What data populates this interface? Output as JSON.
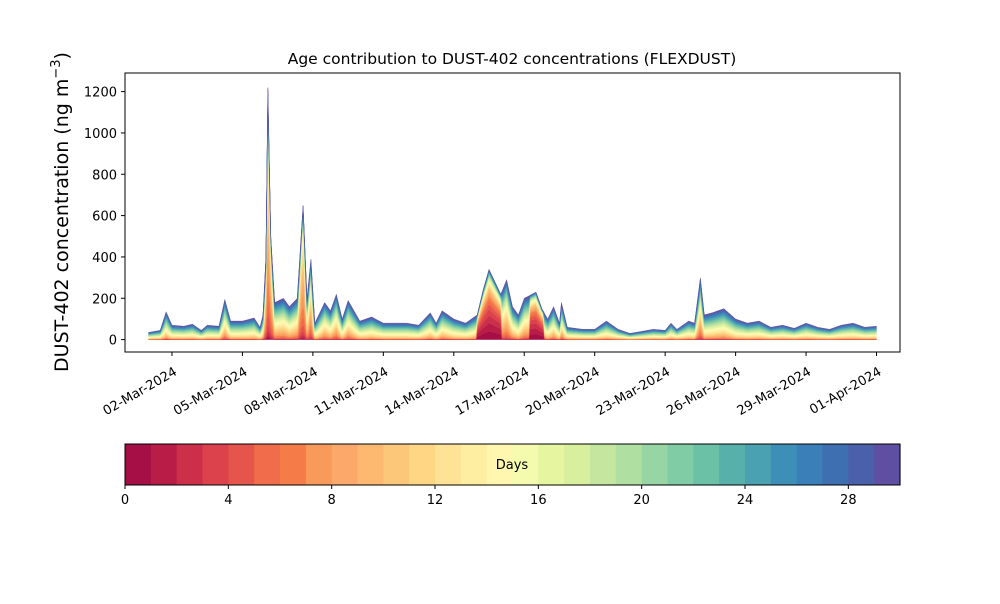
{
  "chart_data": {
    "type": "area",
    "stacked": true,
    "title": "Age contribution to DUST-402 concentrations (FLEXDUST)",
    "ylabel": "DUST-402 concentration (ng m",
    "ylabel_unit_superscript": "−3",
    "ylabel_close": ")",
    "xlabel": "",
    "ylim": [
      -60,
      1290
    ],
    "yticks": [
      0,
      200,
      400,
      600,
      800,
      1000,
      1200
    ],
    "x_start": "2024-02-29",
    "x_end": "2024-04-02",
    "x_data_range": [
      "2024-03-01",
      "2024-04-01"
    ],
    "xticks": [
      {
        "date": "2024-03-02",
        "label": "02-Mar-2024"
      },
      {
        "date": "2024-03-05",
        "label": "05-Mar-2024"
      },
      {
        "date": "2024-03-08",
        "label": "08-Mar-2024"
      },
      {
        "date": "2024-03-11",
        "label": "11-Mar-2024"
      },
      {
        "date": "2024-03-14",
        "label": "14-Mar-2024"
      },
      {
        "date": "2024-03-17",
        "label": "17-Mar-2024"
      },
      {
        "date": "2024-03-20",
        "label": "20-Mar-2024"
      },
      {
        "date": "2024-03-23",
        "label": "23-Mar-2024"
      },
      {
        "date": "2024-03-26",
        "label": "26-Mar-2024"
      },
      {
        "date": "2024-03-29",
        "label": "29-Mar-2024"
      },
      {
        "date": "2024-04-01",
        "label": "01-Apr-2024"
      }
    ],
    "total_series": [
      [
        "2024-03-01 00:00",
        35
      ],
      [
        "2024-03-01 12:00",
        45
      ],
      [
        "2024-03-01 18:00",
        135
      ],
      [
        "2024-03-02 00:00",
        70
      ],
      [
        "2024-03-02 12:00",
        65
      ],
      [
        "2024-03-02 21:00",
        75
      ],
      [
        "2024-03-03 06:00",
        45
      ],
      [
        "2024-03-03 12:00",
        70
      ],
      [
        "2024-03-04 00:00",
        65
      ],
      [
        "2024-03-04 06:00",
        195
      ],
      [
        "2024-03-04 12:00",
        90
      ],
      [
        "2024-03-05 00:00",
        90
      ],
      [
        "2024-03-05 12:00",
        105
      ],
      [
        "2024-03-05 18:00",
        60
      ],
      [
        "2024-03-05 21:00",
        120
      ],
      [
        "2024-03-06 00:00",
        400
      ],
      [
        "2024-03-06 02:00",
        1220
      ],
      [
        "2024-03-06 05:00",
        500
      ],
      [
        "2024-03-06 09:00",
        180
      ],
      [
        "2024-03-06 18:00",
        200
      ],
      [
        "2024-03-07 00:00",
        160
      ],
      [
        "2024-03-07 08:00",
        200
      ],
      [
        "2024-03-07 14:00",
        650
      ],
      [
        "2024-03-07 18:00",
        200
      ],
      [
        "2024-03-07 22:00",
        390
      ],
      [
        "2024-03-08 02:00",
        80
      ],
      [
        "2024-03-08 12:00",
        180
      ],
      [
        "2024-03-08 18:00",
        140
      ],
      [
        "2024-03-09 00:00",
        220
      ],
      [
        "2024-03-09 06:00",
        100
      ],
      [
        "2024-03-09 12:00",
        190
      ],
      [
        "2024-03-10 00:00",
        90
      ],
      [
        "2024-03-10 12:00",
        110
      ],
      [
        "2024-03-11 00:00",
        80
      ],
      [
        "2024-03-12 00:00",
        80
      ],
      [
        "2024-03-12 12:00",
        70
      ],
      [
        "2024-03-13 00:00",
        130
      ],
      [
        "2024-03-13 06:00",
        80
      ],
      [
        "2024-03-13 12:00",
        140
      ],
      [
        "2024-03-14 00:00",
        100
      ],
      [
        "2024-03-14 12:00",
        80
      ],
      [
        "2024-03-15 00:00",
        120
      ],
      [
        "2024-03-15 06:00",
        240
      ],
      [
        "2024-03-15 12:00",
        340
      ],
      [
        "2024-03-16 00:00",
        220
      ],
      [
        "2024-03-16 06:00",
        290
      ],
      [
        "2024-03-16 12:00",
        160
      ],
      [
        "2024-03-16 18:00",
        120
      ],
      [
        "2024-03-17 00:00",
        200
      ],
      [
        "2024-03-17 12:00",
        230
      ],
      [
        "2024-03-17 18:00",
        150
      ],
      [
        "2024-03-18 00:00",
        100
      ],
      [
        "2024-03-18 06:00",
        160
      ],
      [
        "2024-03-18 12:00",
        80
      ],
      [
        "2024-03-18 14:00",
        180
      ],
      [
        "2024-03-18 20:00",
        60
      ],
      [
        "2024-03-19 12:00",
        50
      ],
      [
        "2024-03-20 00:00",
        50
      ],
      [
        "2024-03-20 12:00",
        90
      ],
      [
        "2024-03-21 00:00",
        50
      ],
      [
        "2024-03-21 12:00",
        30
      ],
      [
        "2024-03-22 00:00",
        40
      ],
      [
        "2024-03-22 12:00",
        50
      ],
      [
        "2024-03-23 00:00",
        45
      ],
      [
        "2024-03-23 06:00",
        80
      ],
      [
        "2024-03-23 12:00",
        50
      ],
      [
        "2024-03-24 00:00",
        90
      ],
      [
        "2024-03-24 06:00",
        80
      ],
      [
        "2024-03-24 12:00",
        300
      ],
      [
        "2024-03-24 16:00",
        120
      ],
      [
        "2024-03-25 00:00",
        130
      ],
      [
        "2024-03-25 12:00",
        150
      ],
      [
        "2024-03-26 00:00",
        100
      ],
      [
        "2024-03-26 12:00",
        80
      ],
      [
        "2024-03-27 00:00",
        90
      ],
      [
        "2024-03-27 12:00",
        60
      ],
      [
        "2024-03-28 00:00",
        70
      ],
      [
        "2024-03-28 12:00",
        55
      ],
      [
        "2024-03-29 00:00",
        80
      ],
      [
        "2024-03-29 12:00",
        60
      ],
      [
        "2024-03-30 00:00",
        50
      ],
      [
        "2024-03-30 12:00",
        70
      ],
      [
        "2024-03-31 00:00",
        80
      ],
      [
        "2024-03-31 12:00",
        60
      ],
      [
        "2024-04-01 00:00",
        65
      ]
    ],
    "age_profile_note_days_0_to_30": "fraction of total contributed by each 1-day age bin",
    "age_bin_fractions_spike": [
      0.01,
      0.01,
      0.02,
      0.03,
      0.05,
      0.07,
      0.09,
      0.11,
      0.1,
      0.09,
      0.08,
      0.07,
      0.06,
      0.05,
      0.04,
      0.03,
      0.025,
      0.02,
      0.02,
      0.015,
      0.015,
      0.01,
      0.01,
      0.01,
      0.01,
      0.01,
      0.01,
      0.01,
      0.01,
      0.005
    ],
    "age_bin_fractions_background": [
      0.0,
      0.0,
      0.005,
      0.005,
      0.01,
      0.01,
      0.015,
      0.02,
      0.025,
      0.03,
      0.035,
      0.04,
      0.045,
      0.05,
      0.05,
      0.05,
      0.05,
      0.05,
      0.05,
      0.05,
      0.05,
      0.05,
      0.05,
      0.05,
      0.05,
      0.05,
      0.045,
      0.045,
      0.04,
      0.04
    ],
    "age_bin_fractions_fresh_event": [
      0.12,
      0.12,
      0.11,
      0.09,
      0.07,
      0.06,
      0.05,
      0.04,
      0.035,
      0.03,
      0.03,
      0.025,
      0.025,
      0.02,
      0.02,
      0.02,
      0.02,
      0.015,
      0.015,
      0.015,
      0.01,
      0.01,
      0.01,
      0.01,
      0.01,
      0.01,
      0.01,
      0.01,
      0.005,
      0.005
    ],
    "colorbar": {
      "label": "Days",
      "min": 0,
      "max": 30,
      "bins": 30,
      "ticks": [
        0,
        4,
        8,
        12,
        16,
        20,
        24,
        28
      ],
      "colors": [
        "#a50f45",
        "#b91c47",
        "#cc2f4a",
        "#dc424b",
        "#e6554c",
        "#f06c4a",
        "#f57c49",
        "#f89a59",
        "#fba86a",
        "#fcb96f",
        "#fdc77a",
        "#fed684",
        "#fee396",
        "#feeea2",
        "#fff7b0",
        "#f4fbaf",
        "#e6f5a0",
        "#d8ef9d",
        "#c4e69e",
        "#b0dfa2",
        "#98d5a4",
        "#80cca5",
        "#6bc1a6",
        "#57b0aa",
        "#4aa1b1",
        "#3d8fb8",
        "#3a7fb8",
        "#3e6fb1",
        "#4b60aa",
        "#5e4fa2"
      ]
    }
  }
}
